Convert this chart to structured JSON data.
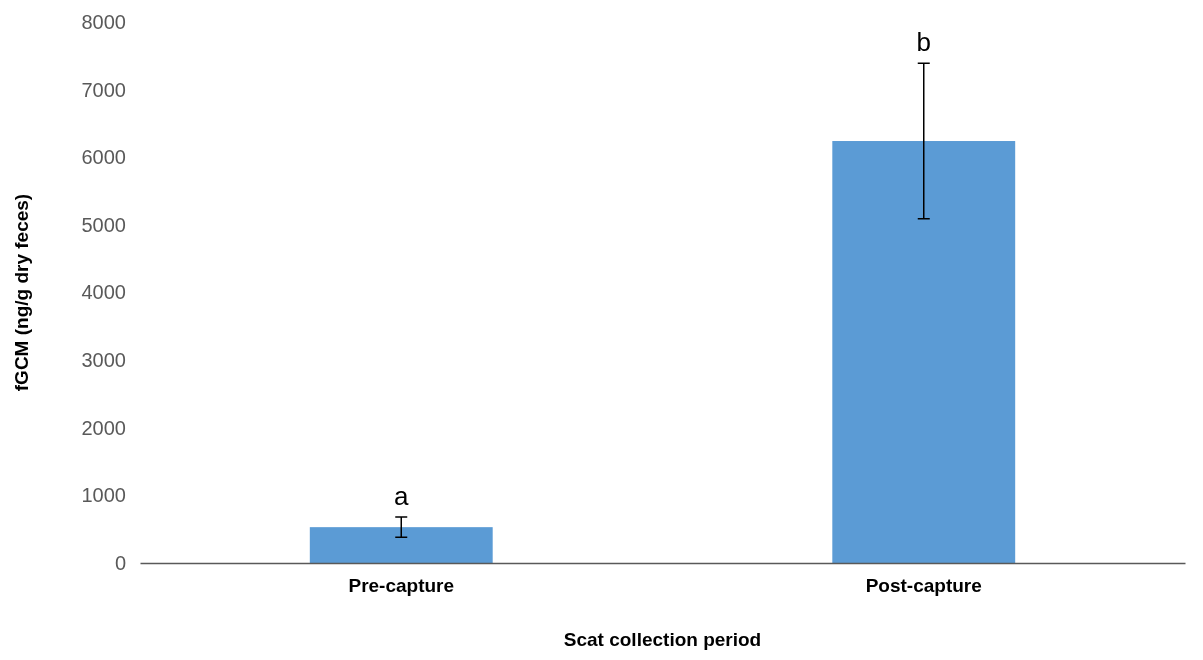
{
  "chart_data": {
    "type": "bar",
    "xlabel": "Scat collection period",
    "ylabel": "fGCM (ng/g dry feces)",
    "categories": [
      "Pre-capture",
      "Post-capture"
    ],
    "values": [
      530,
      6240
    ],
    "errors": [
      150,
      1150
    ],
    "color": "#5b9bd5",
    "ylim": [
      0,
      8000
    ],
    "yticks": [
      0,
      1000,
      2000,
      3000,
      4000,
      5000,
      6000,
      7000,
      8000
    ],
    "grid": false,
    "annotations": [
      {
        "text": "a",
        "x": "Pre-capture",
        "y": 680
      },
      {
        "text": "b",
        "x": "Post-capture",
        "y": 7390
      }
    ]
  }
}
